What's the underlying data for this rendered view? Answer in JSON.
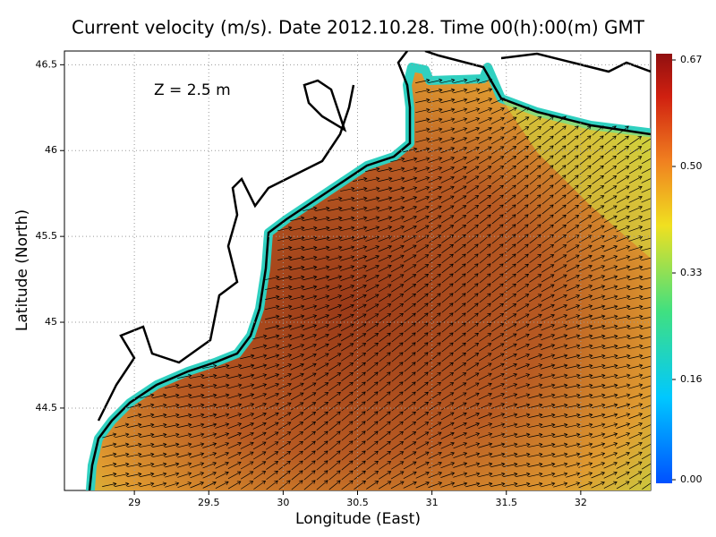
{
  "chart_data": {
    "type": "vector-field",
    "title": "Current velocity (m/s). Date 2012.10.28. Time 00(h):00(m) GMT",
    "annotation": "Z = 2.5 m",
    "x_label": "Longitude (East)",
    "y_label": "Latitude (North)",
    "xlim": [
      28.53,
      32.47
    ],
    "ylim": [
      44.02,
      46.58
    ],
    "xticks": [
      29,
      29.5,
      30,
      30.5,
      31,
      31.5,
      32
    ],
    "yticks": [
      44.5,
      45,
      45.5,
      46,
      46.5
    ],
    "colorbar": {
      "lim": [
        0,
        0.67
      ],
      "ticks": [
        {
          "value": 0,
          "label": "0.00"
        },
        0.16,
        0.33,
        {
          "value": 0.5,
          "label": "0.50"
        },
        0.67
      ]
    },
    "grid": true
  }
}
